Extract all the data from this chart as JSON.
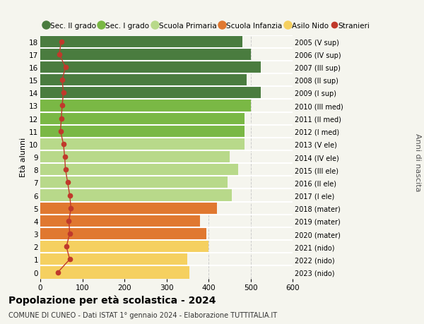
{
  "ages": [
    18,
    17,
    16,
    15,
    14,
    13,
    12,
    11,
    10,
    9,
    8,
    7,
    6,
    5,
    4,
    3,
    2,
    1,
    0
  ],
  "right_labels": [
    "2005 (V sup)",
    "2006 (IV sup)",
    "2007 (III sup)",
    "2008 (II sup)",
    "2009 (I sup)",
    "2010 (III med)",
    "2011 (II med)",
    "2012 (I med)",
    "2013 (V ele)",
    "2014 (IV ele)",
    "2015 (III ele)",
    "2016 (II ele)",
    "2017 (I ele)",
    "2018 (mater)",
    "2019 (mater)",
    "2020 (mater)",
    "2021 (nido)",
    "2022 (nido)",
    "2023 (nido)"
  ],
  "bar_values": [
    480,
    500,
    525,
    490,
    525,
    500,
    485,
    485,
    485,
    450,
    470,
    445,
    455,
    420,
    380,
    395,
    400,
    350,
    355
  ],
  "stranieri_values": [
    50,
    45,
    60,
    52,
    55,
    52,
    50,
    48,
    55,
    58,
    60,
    65,
    70,
    73,
    68,
    70,
    62,
    70,
    42
  ],
  "bar_colors": [
    "#4a7c3f",
    "#4a7c3f",
    "#4a7c3f",
    "#4a7c3f",
    "#4a7c3f",
    "#7ab845",
    "#7ab845",
    "#7ab845",
    "#b8d98a",
    "#b8d98a",
    "#b8d98a",
    "#b8d98a",
    "#b8d98a",
    "#e07830",
    "#e07830",
    "#e07830",
    "#f5d060",
    "#f5d060",
    "#f5d060"
  ],
  "legend_labels": [
    "Sec. II grado",
    "Sec. I grado",
    "Scuola Primaria",
    "Scuola Infanzia",
    "Asilo Nido",
    "Stranieri"
  ],
  "legend_colors": [
    "#4a7c3f",
    "#7ab845",
    "#b8d98a",
    "#e07830",
    "#f5d060",
    "#c0392b"
  ],
  "stranieri_color": "#c0392b",
  "title": "Popolazione per età scolastica - 2024",
  "subtitle": "COMUNE DI CUNEO - Dati ISTAT 1° gennaio 2024 - Elaborazione TUTTITALIA.IT",
  "ylabel_left": "Età alunni",
  "ylabel_right": "Anni di nascita",
  "xlim": [
    0,
    600
  ],
  "background_color": "#f5f5ee",
  "grid_color": "#cccccc"
}
